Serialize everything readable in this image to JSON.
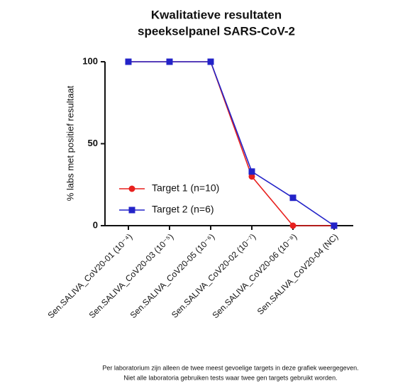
{
  "chart_data": {
    "type": "line",
    "title": [
      "Kwalitatieve resultaten",
      "speekselpanel SARS-CoV-2"
    ],
    "ylabel": "% labs met positief resultaat",
    "categories": [
      "Sen.SALIVA_CoV20-01 (10⁻⁴)",
      "Sen.SALIVA_CoV20-03 (10⁻⁵)",
      "Sen.SALIVA_CoV20-05 (10⁻⁶)",
      "Sen.SALIVA_CoV20-02 (10⁻⁷)",
      "Sen.SALIVA_CoV20-06 (10⁻⁸)",
      "Sen.SALIVA_CoV20-04 (NC)"
    ],
    "series": [
      {
        "name": "Target 1 (n=10)",
        "color": "#e8201e",
        "marker": "circle",
        "values": [
          100,
          100,
          100,
          30,
          0,
          0
        ]
      },
      {
        "name": "Target 2 (n=6)",
        "color": "#2323c8",
        "marker": "square",
        "values": [
          100,
          100,
          100,
          33,
          17,
          0
        ]
      }
    ],
    "ylim": [
      0,
      100
    ],
    "yticks": [
      0,
      50,
      100
    ],
    "notes": [
      "Per laboratorium zijn alleen de twee meest gevoelige targets in deze grafiek weergegeven.",
      "Niet alle laboratoria gebruiken tests waar twee gen targets gebruikt worden."
    ]
  }
}
